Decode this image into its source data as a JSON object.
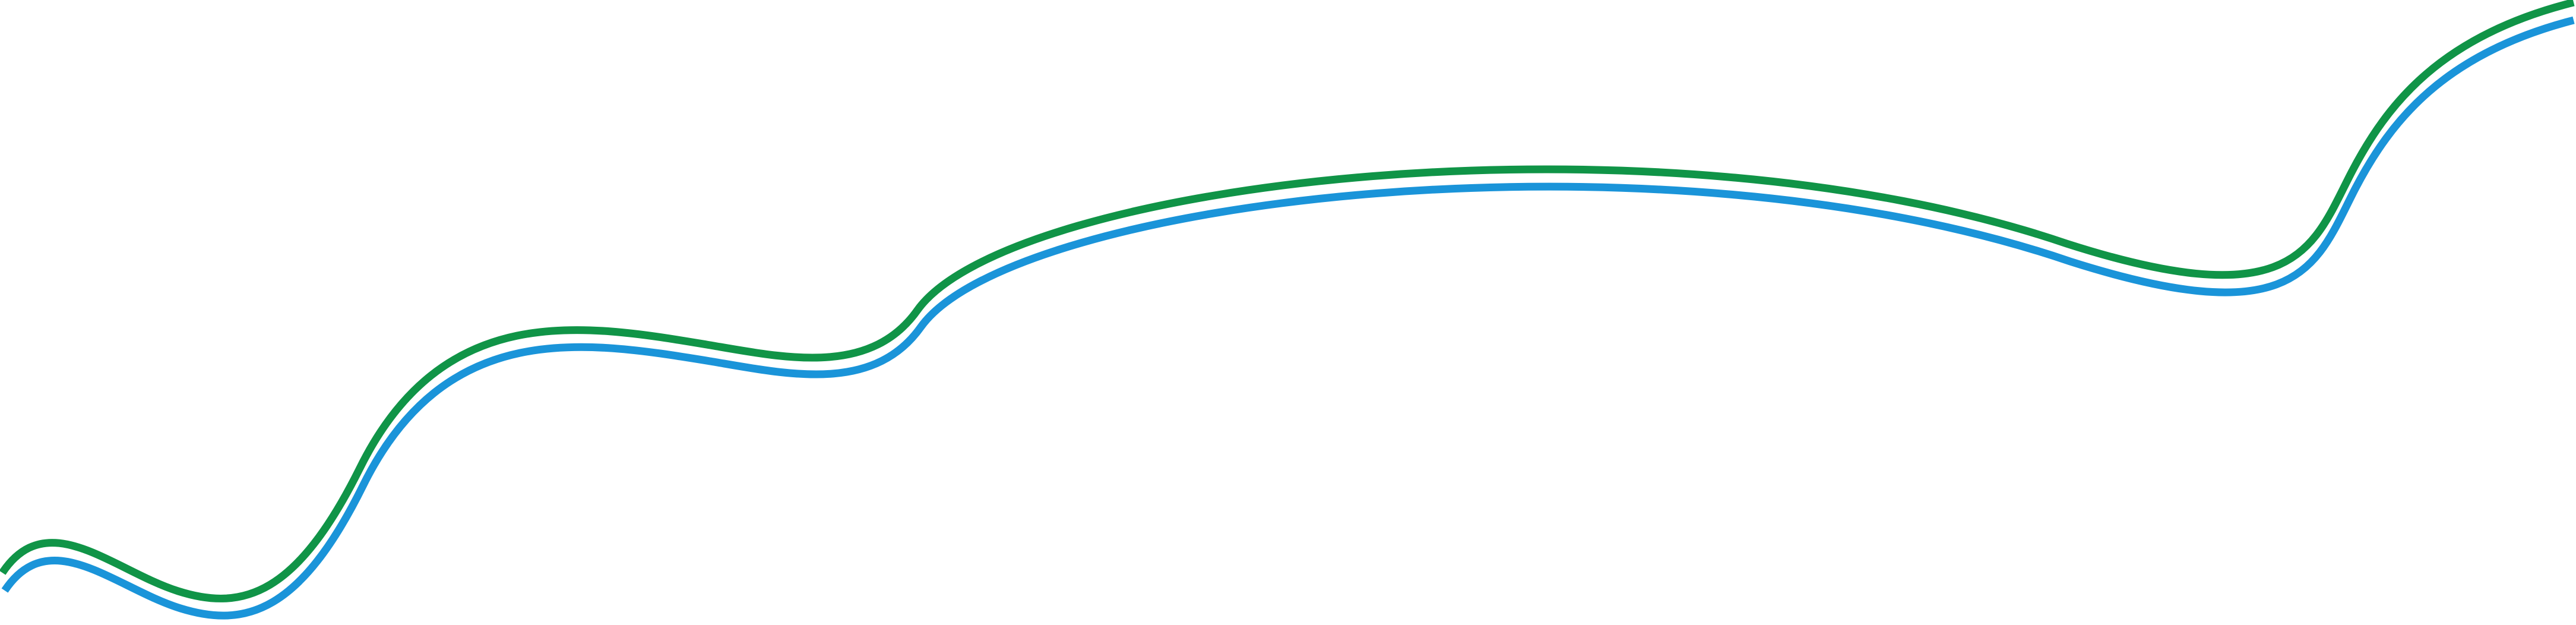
{
  "decoration": {
    "lines": [
      {
        "name": "green-wave-line",
        "color": "#109447"
      },
      {
        "name": "blue-wave-line",
        "color": "#1a94d9"
      }
    ]
  }
}
